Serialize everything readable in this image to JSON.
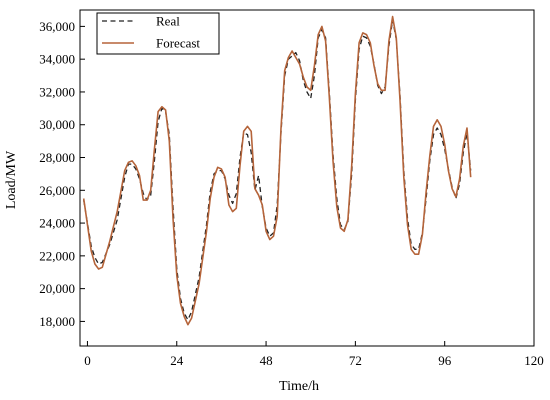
{
  "chart_data": {
    "type": "line",
    "xlabel": "Time/h",
    "ylabel": "Load/MW",
    "xlim": [
      -2,
      120
    ],
    "ylim": [
      16500,
      37000
    ],
    "xticks": [
      0,
      24,
      48,
      72,
      96,
      120
    ],
    "xtick_labels": [
      "0",
      "24",
      "48",
      "72",
      "96",
      "120"
    ],
    "yticks": [
      18000,
      20000,
      22000,
      24000,
      26000,
      28000,
      30000,
      32000,
      34000,
      36000
    ],
    "ytick_labels": [
      "18,000",
      "20,000",
      "22,000",
      "24,000",
      "26,000",
      "28,000",
      "30,000",
      "32,000",
      "34,000",
      "36,000"
    ],
    "grid": false,
    "legend_position": "top-left",
    "series": [
      {
        "name": "Real",
        "style": "dashed",
        "color": "#222222",
        "points": [
          [
            -1,
            25400
          ],
          [
            1,
            22600
          ],
          [
            2,
            21900
          ],
          [
            3,
            21500
          ],
          [
            4,
            21600
          ],
          [
            6,
            22700
          ],
          [
            8,
            24200
          ],
          [
            10,
            26800
          ],
          [
            11,
            27600
          ],
          [
            12,
            27600
          ],
          [
            13,
            27300
          ],
          [
            14,
            26700
          ],
          [
            15,
            25800
          ],
          [
            16,
            25400
          ],
          [
            17,
            25700
          ],
          [
            18,
            27800
          ],
          [
            19,
            30200
          ],
          [
            20,
            31000
          ],
          [
            21,
            30800
          ],
          [
            22,
            29400
          ],
          [
            23,
            25000
          ],
          [
            24,
            21200
          ],
          [
            25,
            19400
          ],
          [
            26,
            18500
          ],
          [
            27,
            18100
          ],
          [
            28,
            18600
          ],
          [
            30,
            20700
          ],
          [
            32,
            23900
          ],
          [
            33,
            25900
          ],
          [
            34,
            27000
          ],
          [
            35,
            27200
          ],
          [
            36,
            27200
          ],
          [
            37,
            26700
          ],
          [
            38,
            25700
          ],
          [
            39,
            25200
          ],
          [
            40,
            25800
          ],
          [
            41,
            28000
          ],
          [
            42,
            29500
          ],
          [
            43,
            29400
          ],
          [
            44,
            28300
          ],
          [
            45,
            26000
          ],
          [
            46,
            26900
          ],
          [
            47,
            25000
          ],
          [
            48,
            23700
          ],
          [
            49,
            23200
          ],
          [
            50,
            23400
          ],
          [
            51,
            25100
          ],
          [
            52,
            29500
          ],
          [
            53,
            33000
          ],
          [
            54,
            34000
          ],
          [
            55,
            34200
          ],
          [
            56,
            34400
          ],
          [
            57,
            33900
          ],
          [
            58,
            32700
          ],
          [
            59,
            32000
          ],
          [
            60,
            31600
          ],
          [
            61,
            33000
          ],
          [
            62,
            35300
          ],
          [
            63,
            35800
          ],
          [
            64,
            35300
          ],
          [
            65,
            32000
          ],
          [
            66,
            28200
          ],
          [
            67,
            25500
          ],
          [
            68,
            23900
          ],
          [
            69,
            23600
          ],
          [
            70,
            24100
          ],
          [
            71,
            27000
          ],
          [
            72,
            31500
          ],
          [
            73,
            34600
          ],
          [
            74,
            35400
          ],
          [
            75,
            35300
          ],
          [
            76,
            34800
          ],
          [
            77,
            33700
          ],
          [
            78,
            32400
          ],
          [
            79,
            31900
          ],
          [
            80,
            32300
          ],
          [
            81,
            34800
          ],
          [
            82,
            36400
          ],
          [
            83,
            35200
          ],
          [
            84,
            31800
          ],
          [
            85,
            27200
          ],
          [
            86,
            24300
          ],
          [
            87,
            22700
          ],
          [
            88,
            22400
          ],
          [
            89,
            22400
          ],
          [
            90,
            23400
          ],
          [
            91,
            25500
          ],
          [
            92,
            27800
          ],
          [
            93,
            29400
          ],
          [
            94,
            29800
          ],
          [
            95,
            29400
          ],
          [
            96,
            28500
          ],
          [
            97,
            27300
          ],
          [
            98,
            26200
          ],
          [
            99,
            25500
          ],
          [
            100,
            26400
          ],
          [
            101,
            28300
          ],
          [
            102,
            29500
          ],
          [
            103,
            27200
          ]
        ]
      },
      {
        "name": "Forecast",
        "style": "solid",
        "color": "#b5643a",
        "points": [
          [
            -1,
            25500
          ],
          [
            1,
            22300
          ],
          [
            2,
            21500
          ],
          [
            3,
            21200
          ],
          [
            4,
            21300
          ],
          [
            6,
            22900
          ],
          [
            8,
            24700
          ],
          [
            10,
            27200
          ],
          [
            11,
            27700
          ],
          [
            12,
            27800
          ],
          [
            13,
            27500
          ],
          [
            14,
            26900
          ],
          [
            15,
            25400
          ],
          [
            16,
            25400
          ],
          [
            17,
            26000
          ],
          [
            18,
            28500
          ],
          [
            19,
            30800
          ],
          [
            20,
            31100
          ],
          [
            21,
            30900
          ],
          [
            22,
            29000
          ],
          [
            23,
            24300
          ],
          [
            24,
            20800
          ],
          [
            25,
            19100
          ],
          [
            26,
            18300
          ],
          [
            27,
            17800
          ],
          [
            28,
            18200
          ],
          [
            30,
            20300
          ],
          [
            32,
            23500
          ],
          [
            33,
            25500
          ],
          [
            34,
            26800
          ],
          [
            35,
            27400
          ],
          [
            36,
            27300
          ],
          [
            37,
            26800
          ],
          [
            38,
            25100
          ],
          [
            39,
            24700
          ],
          [
            40,
            24900
          ],
          [
            41,
            27500
          ],
          [
            42,
            29600
          ],
          [
            43,
            29900
          ],
          [
            44,
            29600
          ],
          [
            45,
            26100
          ],
          [
            46,
            25700
          ],
          [
            47,
            25100
          ],
          [
            48,
            23500
          ],
          [
            49,
            23000
          ],
          [
            50,
            23200
          ],
          [
            51,
            24400
          ],
          [
            52,
            29800
          ],
          [
            53,
            33300
          ],
          [
            54,
            34100
          ],
          [
            55,
            34500
          ],
          [
            56,
            34100
          ],
          [
            57,
            33700
          ],
          [
            58,
            32900
          ],
          [
            59,
            32300
          ],
          [
            60,
            32100
          ],
          [
            61,
            33600
          ],
          [
            62,
            35500
          ],
          [
            63,
            36000
          ],
          [
            64,
            35100
          ],
          [
            65,
            31700
          ],
          [
            66,
            27800
          ],
          [
            67,
            25000
          ],
          [
            68,
            23700
          ],
          [
            69,
            23500
          ],
          [
            70,
            24200
          ],
          [
            71,
            27500
          ],
          [
            72,
            31900
          ],
          [
            73,
            35000
          ],
          [
            74,
            35600
          ],
          [
            75,
            35500
          ],
          [
            76,
            35000
          ],
          [
            77,
            33600
          ],
          [
            78,
            32500
          ],
          [
            79,
            32100
          ],
          [
            80,
            32100
          ],
          [
            81,
            35100
          ],
          [
            82,
            36600
          ],
          [
            83,
            35300
          ],
          [
            84,
            31500
          ],
          [
            85,
            26800
          ],
          [
            86,
            23900
          ],
          [
            87,
            22400
          ],
          [
            88,
            22100
          ],
          [
            89,
            22100
          ],
          [
            90,
            23300
          ],
          [
            91,
            25900
          ],
          [
            92,
            28100
          ],
          [
            93,
            29900
          ],
          [
            94,
            30300
          ],
          [
            95,
            29900
          ],
          [
            96,
            28800
          ],
          [
            97,
            27200
          ],
          [
            98,
            26100
          ],
          [
            99,
            25600
          ],
          [
            100,
            26700
          ],
          [
            101,
            28700
          ],
          [
            102,
            29800
          ],
          [
            103,
            26800
          ]
        ]
      }
    ]
  }
}
